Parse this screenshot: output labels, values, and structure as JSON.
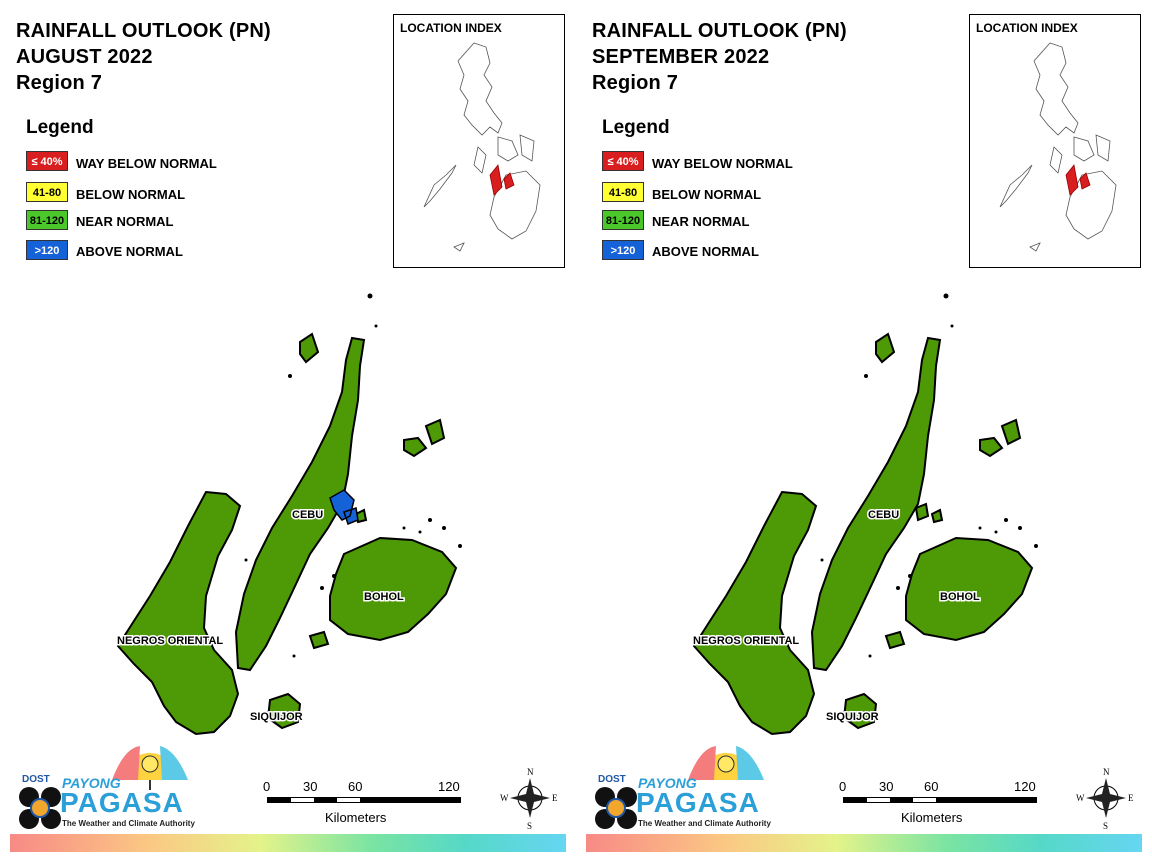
{
  "panels": [
    {
      "title_line1": "RAINFALL OUTLOOK (PN)",
      "title_line2": "AUGUST 2022",
      "title_line3": "Region 7",
      "cebu_above_normal": true
    },
    {
      "title_line1": "RAINFALL OUTLOOK (PN)",
      "title_line2": "SEPTEMBER 2022",
      "title_line3": "Region 7",
      "cebu_above_normal": false
    }
  ],
  "legend": {
    "heading": "Legend",
    "items": [
      {
        "code": "≤ 40%",
        "label": "WAY BELOW NORMAL",
        "color": "#d81e1e",
        "text_color": "#ffffff"
      },
      {
        "code": "41-80",
        "label": "BELOW NORMAL",
        "color": "#ffff33",
        "text_color": "#000000"
      },
      {
        "code": "81-120",
        "label": "NEAR NORMAL",
        "color": "#4cc72a",
        "text_color": "#000000"
      },
      {
        "code": ">120",
        "label": "ABOVE NORMAL",
        "color": "#1461d8",
        "text_color": "#ffffff"
      }
    ]
  },
  "location_index": {
    "title": "LOCATION INDEX",
    "highlight_color": "#d81e1e"
  },
  "map": {
    "fill_color": "#4e9a06",
    "above_normal_color": "#1461d8",
    "labels": {
      "cebu": "CEBU",
      "bohol": "BOHOL",
      "negros": "NEGROS ORIENTAL",
      "siquijor": "SIQUIJOR"
    }
  },
  "scale": {
    "ticks": [
      "0",
      "30",
      "60",
      "120"
    ],
    "unit": "Kilometers"
  },
  "compass": {
    "n": "N",
    "s": "S",
    "e": "E",
    "w": "W"
  },
  "branding": {
    "dost": "DOST",
    "payong": "PAYONG",
    "pagasa": "PAGASA",
    "tagline": "The Weather and Climate Authority"
  }
}
